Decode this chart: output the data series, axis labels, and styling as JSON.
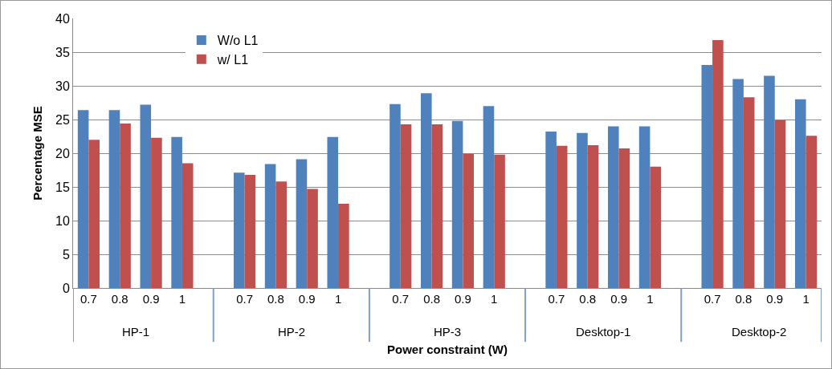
{
  "chart_data": {
    "type": "bar",
    "xlabel": "Power constraint (W)",
    "ylabel": "Percentage MSE",
    "categories": [
      "0.7",
      "0.8",
      "0.9",
      "1",
      null,
      "0.7",
      "0.8",
      "0.9",
      "1",
      null,
      "0.7",
      "0.8",
      "0.9",
      "1",
      null,
      "0.7",
      "0.8",
      "0.9",
      "1",
      null,
      "0.7",
      "0.8",
      "0.9",
      "1"
    ],
    "series": [
      {
        "name": "W/o L1",
        "color": "#4f81bd",
        "values": [
          26.4,
          26.4,
          27.2,
          22.4,
          null,
          17.1,
          18.4,
          19.1,
          22.4,
          null,
          27.3,
          28.9,
          24.8,
          27.0,
          null,
          23.2,
          23.0,
          24.0,
          24.0,
          null,
          33.1,
          31.0,
          31.5,
          28.0
        ]
      },
      {
        "name": "w/ L1",
        "color": "#c0504d",
        "values": [
          22.0,
          24.4,
          22.3,
          18.5,
          null,
          16.8,
          15.8,
          14.7,
          12.5,
          null,
          24.3,
          24.3,
          19.9,
          19.8,
          null,
          21.1,
          21.2,
          20.7,
          18.0,
          null,
          36.8,
          28.3,
          24.9,
          22.6
        ]
      }
    ],
    "annotations": [
      "HP-1",
      "HP-2",
      "HP-3",
      "Desktop-1",
      "Desktop-2"
    ],
    "ylim": [
      0,
      40
    ],
    "yticks": [
      0,
      5,
      10,
      15,
      20,
      25,
      30,
      35,
      40
    ],
    "grid": "y",
    "legend": "top left"
  }
}
